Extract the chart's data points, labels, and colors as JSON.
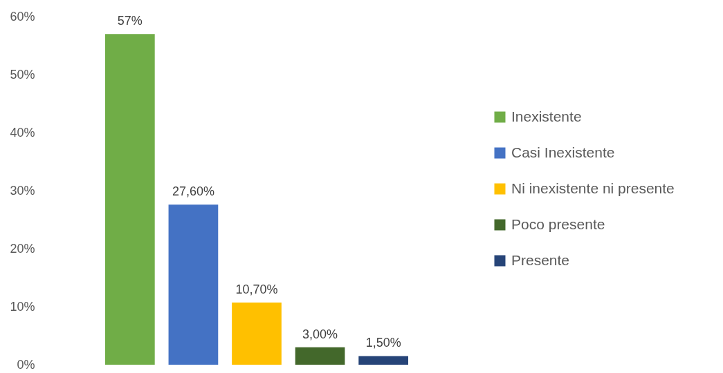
{
  "chart_data": {
    "type": "bar",
    "categories": [
      null
    ],
    "series": [
      {
        "name": "Inexistente",
        "color": "#70ad47",
        "values": [
          57
        ],
        "value_labels": [
          "57%"
        ]
      },
      {
        "name": "Casi Inexistente",
        "color": "#4472c4",
        "values": [
          27.6
        ],
        "value_labels": [
          "27,60%"
        ]
      },
      {
        "name": "Ni inexistente ni presente",
        "color": "#ffc000",
        "values": [
          10.7
        ],
        "value_labels": [
          "10,70%"
        ]
      },
      {
        "name": "Poco presente",
        "color": "#43682b",
        "values": [
          3.0
        ],
        "value_labels": [
          "3,00%"
        ]
      },
      {
        "name": "Presente",
        "color": "#264478",
        "values": [
          1.5
        ],
        "value_labels": [
          "1,50%"
        ]
      }
    ],
    "ylim": [
      0,
      60
    ],
    "yticks": [
      {
        "value": 0,
        "label": "0%"
      },
      {
        "value": 10,
        "label": "10%"
      },
      {
        "value": 20,
        "label": "20%"
      },
      {
        "value": 30,
        "label": "30%"
      },
      {
        "value": 40,
        "label": "40%"
      },
      {
        "value": 50,
        "label": "50%"
      },
      {
        "value": 60,
        "label": "60%"
      }
    ],
    "grid": false,
    "legend": "right",
    "tick_labels": "y"
  }
}
